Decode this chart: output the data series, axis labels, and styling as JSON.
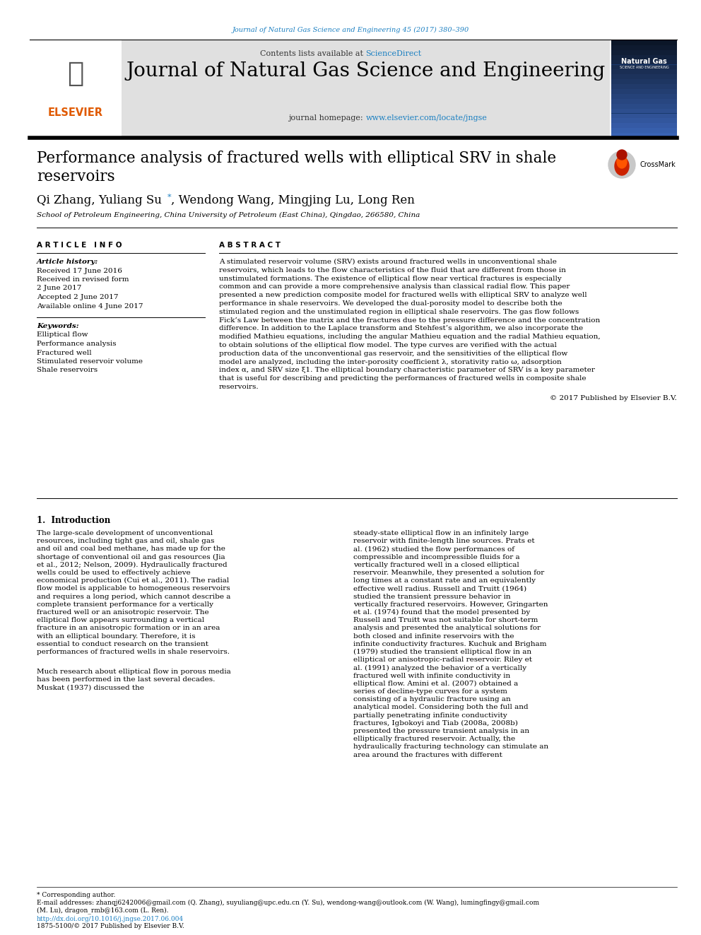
{
  "journal_ref": "Journal of Natural Gas Science and Engineering 45 (2017) 380–390",
  "sciencedirect_color": "#1a7fc1",
  "journal_name": "Journal of Natural Gas Science and Engineering",
  "homepage_url": "www.elsevier.com/locate/jngse",
  "paper_title_line1": "Performance analysis of fractured wells with elliptical SRV in shale",
  "paper_title_line2": "reservoirs",
  "authors": "Qi Zhang, Yuliang Su",
  "authors2": ", Wendong Wang, Mingjing Lu, Long Ren",
  "affiliation": "School of Petroleum Engineering, China University of Petroleum (East China), Qingdao, 266580, China",
  "article_info_header": "A R T I C L E   I N F O",
  "abstract_header": "A B S T R A C T",
  "article_history_label": "Article history:",
  "received1": "Received 17 June 2016",
  "received_revised": "Received in revised form",
  "date_revised": "2 June 2017",
  "accepted": "Accepted 2 June 2017",
  "available": "Available online 4 June 2017",
  "keywords_label": "Keywords:",
  "keywords": [
    "Elliptical flow",
    "Performance analysis",
    "Fractured well",
    "Stimulated reservoir volume",
    "Shale reservoirs"
  ],
  "abstract_text": "A stimulated reservoir volume (SRV) exists around fractured wells in unconventional shale reservoirs, which leads to the flow characteristics of the fluid that are different from those in unstimulated formations. The existence of elliptical flow near vertical fractures is especially common and can provide a more comprehensive analysis than classical radial flow. This paper presented a new prediction composite model for fractured wells with elliptical SRV to analyze well performance in shale reservoirs. We developed the dual-porosity model to describe both the stimulated region and the unstimulated region in elliptical shale reservoirs. The gas flow follows Fick’s Law between the matrix and the fractures due to the pressure difference and the concentration difference. In addition to the Laplace transform and Stehfest’s algorithm, we also incorporate the modified Mathieu equations, including the angular Mathieu equation and the radial Mathieu equation, to obtain solutions of the elliptical flow model. The type curves are verified with the actual production data of the unconventional gas reservoir, and the sensitivities of the elliptical flow model are analyzed, including the inter-porosity coefficient λ, storativity ratio ω, adsorption index α, and SRV size ξ1. The elliptical boundary characteristic parameter of SRV is a key parameter that is useful for describing and predicting the performances of fractured wells in composite shale reservoirs.",
  "copyright_text": "© 2017 Published by Elsevier B.V.",
  "section1_header": "1.  Introduction",
  "intro_left_para1": "The large-scale development of unconventional resources, including tight gas and oil, shale gas and oil and coal bed methane, has made up for the shortage of conventional oil and gas resources (Jia et al., 2012; Nelson, 2009). Hydraulically fractured wells could be used to effectively achieve economical production (Cui et al., 2011). The radial flow model is applicable to homogeneous reservoirs and requires a long period, which cannot describe a complete transient performance for a vertically fractured well or an anisotropic reservoir. The elliptical flow appears surrounding a vertical fracture in an anisotropic formation or in an area with an elliptical boundary. Therefore, it is essential to conduct research on the transient performances of fractured wells in shale reservoirs.",
  "intro_left_para2": "Much research about elliptical flow in porous media has been performed in the last several decades. Muskat (1937) discussed the",
  "intro_right": "steady-state elliptical flow in an infinitely large reservoir with finite-length line sources. Prats et al. (1962) studied the flow performances of compressible and incompressible fluids for a vertically fractured well in a closed elliptical reservoir. Meanwhile, they presented a solution for long times at a constant rate and an equivalently effective well radius. Russell and Truitt (1964) studied the transient pressure behavior in vertically fractured reservoirs. However, Gringarten et al. (1974) found that the model presented by Russell and Truitt was not suitable for short-term analysis and presented the analytical solutions for both closed and infinite reservoirs with the infinite conductivity fractures. Kuchuk and Brigham (1979) studied the transient elliptical flow in an elliptical or anisotropic-radial reservoir. Riley et al. (1991) analyzed the behavior of a vertically fractured well with infinite conductivity in elliptical flow. Amini et al. (2007) obtained a series of decline-type curves for a system consisting of a hydraulic fracture using an analytical model. Considering both the full and partially penetrating infinite conductivity fractures, Igbokoyi and Tiab (2008a, 2008b) presented the pressure transient analysis in an elliptically fractured reservoir. Actually, the hydraulically fracturing technology can stimulate an area around the fractures with different",
  "footnote_corresponding": "* Corresponding author.",
  "footnote_emails": "E-mail addresses: zhanqj6242006@gmail.com (Q. Zhang), suyuliang@upc.edu.cn (Y. Su), wendong-wang@outlook.com (W. Wang), lumingfingy@gmail.com",
  "footnote_emails2": "(M. Lu), dragon_rmb@163.com (L. Ren).",
  "footnote_doi": "http://dx.doi.org/10.1016/j.jngse.2017.06.004",
  "footnote_issn": "1875-5100/© 2017 Published by Elsevier B.V.",
  "bg_header": "#e0e0e0",
  "bg_white": "#ffffff",
  "orange_elsevier": "#e05a00",
  "link_color": "#1a7fc1",
  "black": "#000000"
}
